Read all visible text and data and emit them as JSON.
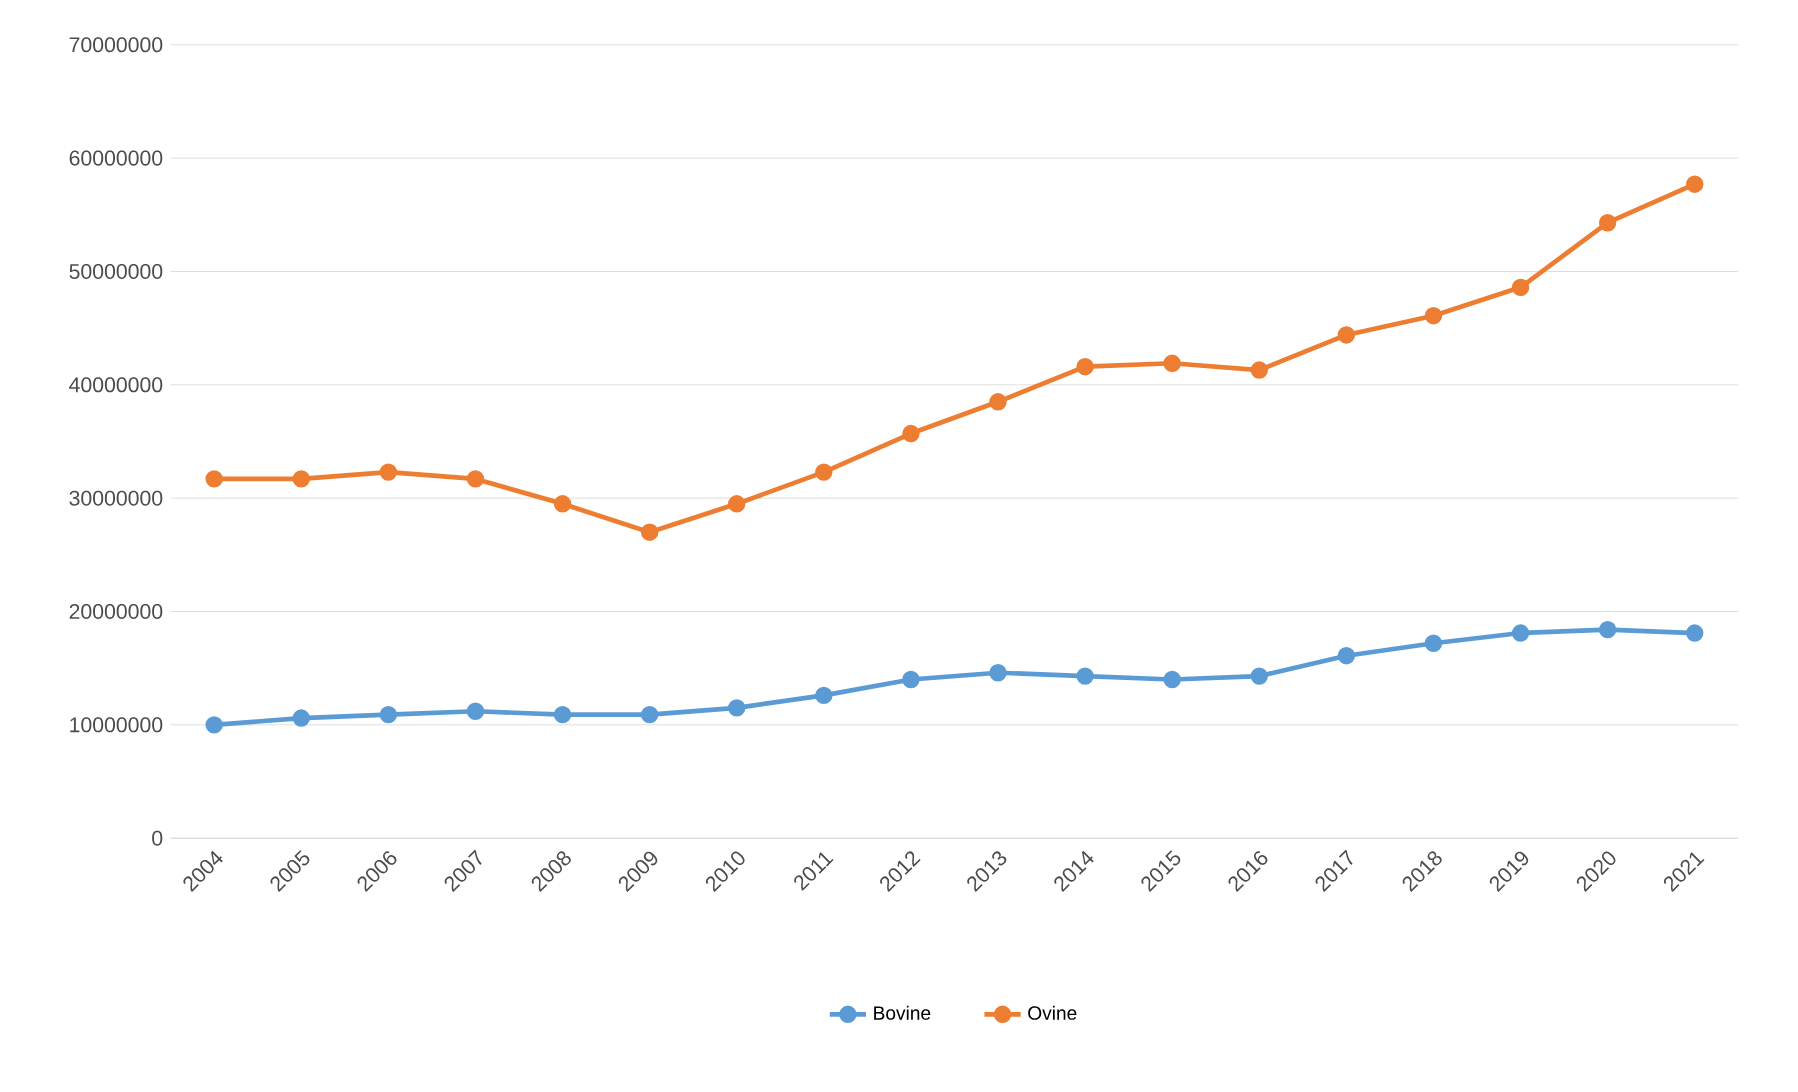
{
  "chart_data": {
    "type": "line",
    "categories": [
      "2004",
      "2005",
      "2006",
      "2007",
      "2008",
      "2009",
      "2010",
      "2011",
      "2012",
      "2013",
      "2014",
      "2015",
      "2016",
      "2017",
      "2018",
      "2019",
      "2020",
      "2021"
    ],
    "series": [
      {
        "name": "Bovine",
        "color": "#5b9bd5",
        "values": [
          10000000,
          10600000,
          10900000,
          11200000,
          10900000,
          10900000,
          11500000,
          12600000,
          14000000,
          14600000,
          14300000,
          14000000,
          14300000,
          16100000,
          17200000,
          18100000,
          18400000,
          18100000
        ]
      },
      {
        "name": "Ovine",
        "color": "#ed7d31",
        "values": [
          31700000,
          31700000,
          32300000,
          31700000,
          29500000,
          27000000,
          29500000,
          32300000,
          35700000,
          38500000,
          41600000,
          41900000,
          41300000,
          44400000,
          46100000,
          48600000,
          54300000,
          57700000
        ]
      }
    ],
    "ylim": [
      0,
      70000000
    ],
    "yticks": [
      0,
      10000000,
      20000000,
      30000000,
      40000000,
      50000000,
      60000000,
      70000000
    ],
    "grid": "y",
    "legend": "bottom",
    "marker": "circle",
    "line_style": "solid"
  }
}
